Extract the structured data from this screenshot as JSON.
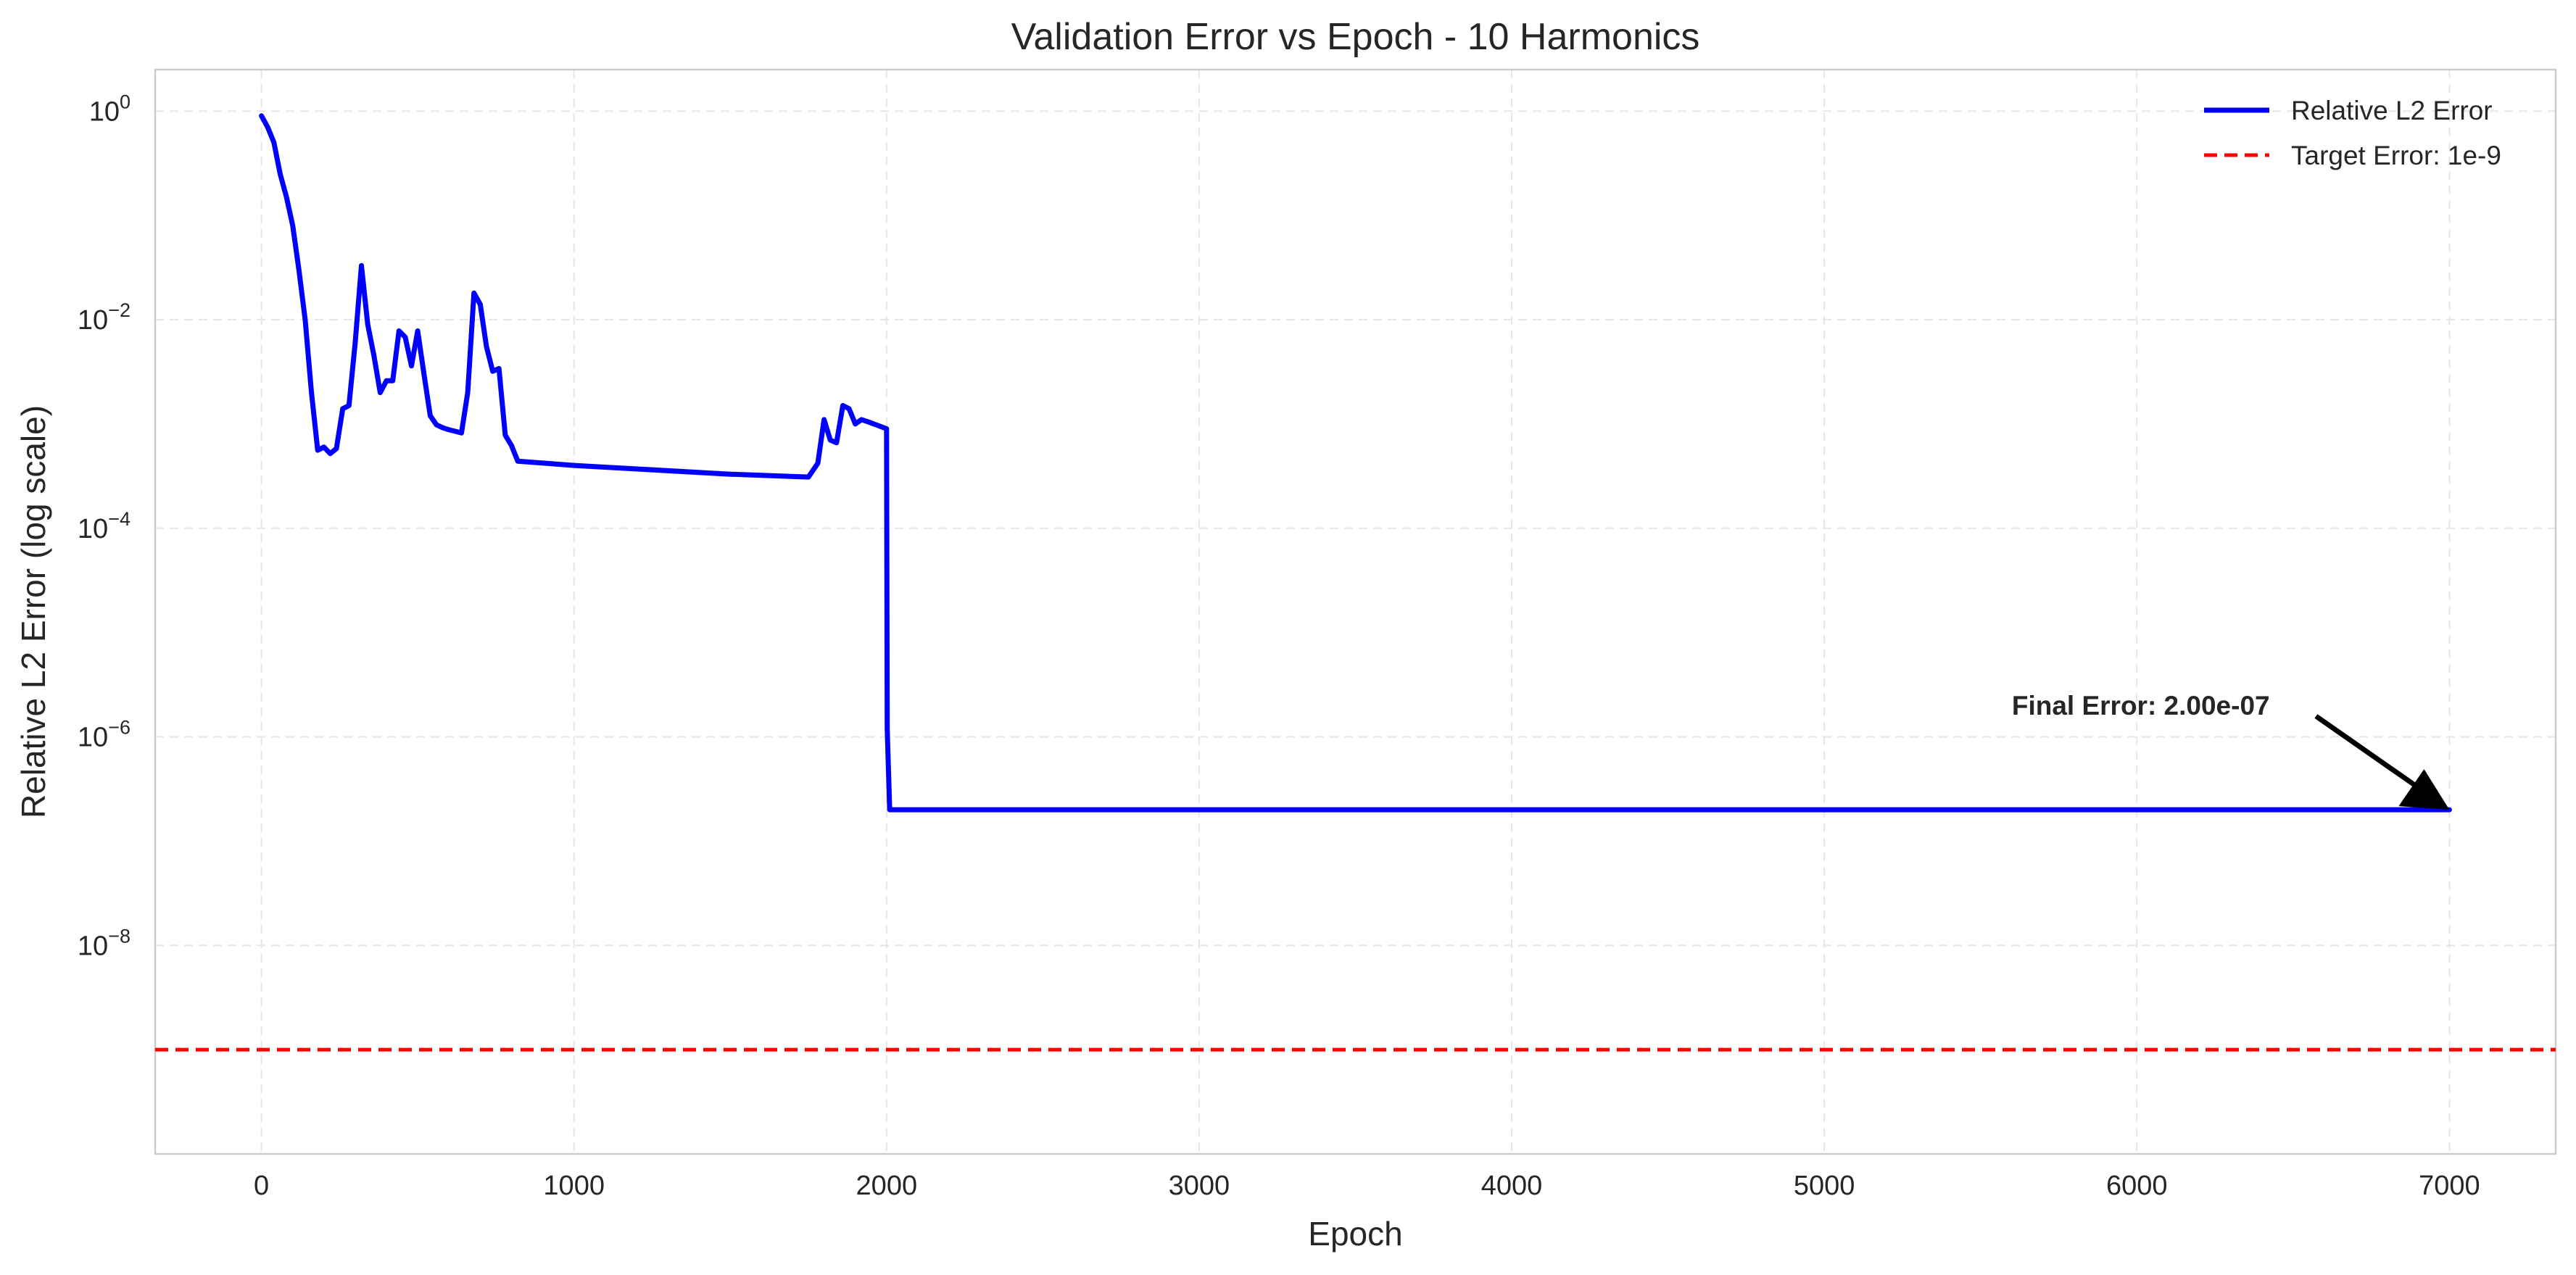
{
  "chart_data": {
    "type": "line",
    "title": "Validation Error vs Epoch - 10 Harmonics",
    "xlabel": "Epoch",
    "ylabel": "Relative L2 Error (log scale)",
    "xlim": [
      -340,
      7340
    ],
    "ylim": [
      1e-10,
      2.5
    ],
    "yscale": "log",
    "grid": true,
    "legend_position": "top-right",
    "xticks": [
      0,
      1000,
      2000,
      3000,
      4000,
      5000,
      6000,
      7000
    ],
    "xtick_labels": [
      "0",
      "1000",
      "2000",
      "3000",
      "4000",
      "5000",
      "6000",
      "7000"
    ],
    "yticks": [
      1,
      0.01,
      0.0001,
      1e-06,
      1e-08
    ],
    "ytick_labels": [
      {
        "base": "10",
        "exp": "0"
      },
      {
        "base": "10",
        "exp": "−2"
      },
      {
        "base": "10",
        "exp": "−4"
      },
      {
        "base": "10",
        "exp": "−6"
      },
      {
        "base": "10",
        "exp": "−8"
      }
    ],
    "series": [
      {
        "name": "Relative L2 Error",
        "color": "#0000ff",
        "style": "solid",
        "x": [
          0,
          20,
          40,
          60,
          80,
          100,
          120,
          140,
          160,
          180,
          200,
          220,
          240,
          260,
          280,
          300,
          320,
          340,
          360,
          380,
          400,
          420,
          440,
          460,
          480,
          500,
          520,
          540,
          560,
          580,
          600,
          620,
          640,
          660,
          680,
          700,
          720,
          740,
          760,
          780,
          800,
          820,
          1000,
          1500,
          1750,
          1780,
          1800,
          1820,
          1840,
          1860,
          1880,
          1900,
          1920,
          1940,
          2000,
          2002,
          2010,
          7000
        ],
        "y": [
          0.9,
          0.7,
          0.5,
          0.25,
          0.15,
          0.08,
          0.03,
          0.01,
          0.002,
          0.00056,
          0.0006,
          0.00052,
          0.00058,
          0.0014,
          0.0015,
          0.006,
          0.033,
          0.009,
          0.0045,
          0.002,
          0.0026,
          0.0026,
          0.0078,
          0.0068,
          0.0036,
          0.0078,
          0.003,
          0.0012,
          0.00098,
          0.00092,
          0.00088,
          0.00085,
          0.00082,
          0.002,
          0.018,
          0.014,
          0.0055,
          0.0032,
          0.0034,
          0.00078,
          0.00062,
          0.00044,
          0.0004,
          0.00033,
          0.00031,
          0.00042,
          0.0011,
          0.0007,
          0.00066,
          0.0015,
          0.0014,
          0.001,
          0.0011,
          0.00105,
          0.0009,
          1.2e-06,
          2e-07,
          2e-07
        ]
      },
      {
        "name": "Target Error: 1e-9",
        "color": "#ff0000",
        "style": "dashed",
        "y_constant": 1e-09
      }
    ],
    "annotations": [
      {
        "text": "Final Error: 2.00e-07",
        "xy": [
          7000,
          2e-07
        ],
        "xytext": [
          5600,
          2e-06
        ]
      }
    ]
  }
}
